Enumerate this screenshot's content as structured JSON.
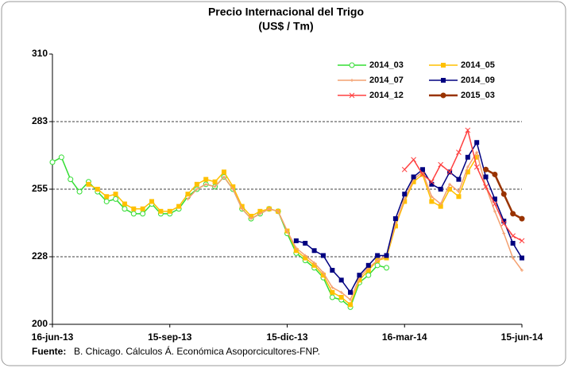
{
  "chart_data": {
    "type": "line",
    "title": "Precio Internacional del Trigo",
    "subtitle": "(US$ / Tm)",
    "source_label": "Fuente:",
    "source": "B. Chicago. Cálculos Á. Económica Asoporcicultores-FNP.",
    "categories": [
      "16-jun-13",
      null,
      null,
      null,
      null,
      null,
      null,
      null,
      null,
      null,
      null,
      null,
      null,
      "15-sep-13",
      null,
      null,
      null,
      null,
      null,
      null,
      null,
      null,
      null,
      null,
      null,
      null,
      "15-dic-13",
      null,
      null,
      null,
      null,
      null,
      null,
      null,
      null,
      null,
      null,
      null,
      null,
      "16-mar-14",
      null,
      null,
      null,
      null,
      null,
      null,
      null,
      null,
      null,
      null,
      null,
      null,
      "15-jun-14"
    ],
    "ylim": [
      200,
      310
    ],
    "yticks": [
      200,
      {
        "value": 227.5,
        "label": "228"
      },
      255,
      {
        "value": 282.5,
        "label": "283"
      },
      310
    ],
    "grid": true,
    "legend": "top-right",
    "series": [
      {
        "name": "2014_03",
        "color": "#33dd33",
        "marker": "circle",
        "values": [
          266,
          268,
          259,
          254,
          258,
          254,
          250,
          251,
          247,
          245,
          245,
          249,
          245,
          245,
          247,
          252,
          255,
          257,
          256,
          260,
          255,
          247,
          243,
          245,
          247,
          246,
          237,
          229,
          226,
          223,
          219,
          211,
          210,
          207,
          217,
          220,
          224,
          223,
          null,
          null,
          null,
          null,
          null,
          null,
          null,
          null,
          null,
          null,
          null,
          null,
          null,
          null,
          null
        ]
      },
      {
        "name": "2014_05",
        "color": "#ffc000",
        "marker": "square",
        "values": [
          null,
          null,
          null,
          null,
          257,
          255,
          252,
          253,
          249,
          247,
          247,
          250,
          246,
          246,
          248,
          253,
          257,
          259,
          258,
          262,
          256,
          248,
          244,
          246,
          247,
          246,
          238,
          230,
          227,
          224,
          220,
          213,
          211,
          208,
          218,
          222,
          226,
          227,
          240,
          250,
          258,
          261,
          250,
          248,
          255,
          252,
          262,
          268,
          null,
          null,
          null,
          null,
          null
        ]
      },
      {
        "name": "2014_07",
        "color": "#f4a070",
        "marker": "plus",
        "values": [
          null,
          null,
          null,
          null,
          null,
          null,
          null,
          null,
          null,
          null,
          null,
          null,
          null,
          null,
          null,
          251,
          255,
          257,
          256,
          260,
          255,
          247,
          243,
          245,
          247,
          246,
          238,
          231,
          228,
          225,
          221,
          215,
          213,
          210,
          219,
          223,
          226,
          228,
          241,
          251,
          259,
          262,
          252,
          249,
          257,
          254,
          264,
          270,
          256,
          246,
          237,
          227,
          222
        ]
      },
      {
        "name": "2014_09",
        "color": "#000080",
        "marker": "square",
        "values": [
          null,
          null,
          null,
          null,
          null,
          null,
          null,
          null,
          null,
          null,
          null,
          null,
          null,
          null,
          null,
          null,
          null,
          null,
          null,
          null,
          null,
          null,
          null,
          null,
          null,
          null,
          null,
          234,
          233,
          230,
          228,
          222,
          218,
          213,
          220,
          224,
          228,
          228,
          243,
          253,
          260,
          263,
          257,
          255,
          262,
          259,
          268,
          274,
          260,
          251,
          242,
          233,
          227
        ]
      },
      {
        "name": "2014_12",
        "color": "#ff4040",
        "marker": "x",
        "values": [
          null,
          null,
          null,
          null,
          null,
          null,
          null,
          null,
          null,
          null,
          null,
          null,
          null,
          null,
          null,
          null,
          null,
          null,
          null,
          null,
          null,
          null,
          null,
          null,
          null,
          null,
          null,
          null,
          null,
          null,
          null,
          null,
          null,
          null,
          null,
          null,
          null,
          null,
          null,
          263,
          267,
          261,
          258,
          265,
          262,
          270,
          279,
          264,
          256,
          249,
          241,
          236,
          234
        ]
      },
      {
        "name": "2015_03",
        "color": "#993300",
        "marker": "circle",
        "values": [
          null,
          null,
          null,
          null,
          null,
          null,
          null,
          null,
          null,
          null,
          null,
          null,
          null,
          null,
          null,
          null,
          null,
          null,
          null,
          null,
          null,
          null,
          null,
          null,
          null,
          null,
          null,
          null,
          null,
          null,
          null,
          null,
          null,
          null,
          null,
          null,
          null,
          null,
          null,
          null,
          null,
          null,
          null,
          null,
          null,
          null,
          null,
          null,
          263,
          261,
          253,
          245,
          243
        ]
      }
    ]
  }
}
